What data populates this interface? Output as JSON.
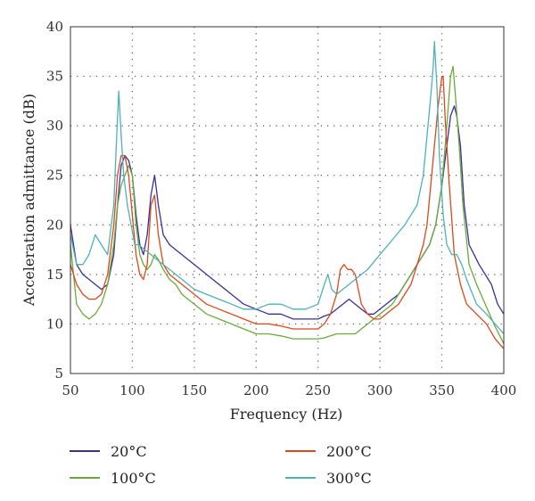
{
  "chart_data": {
    "type": "line",
    "xlabel": "Frequency (Hz)",
    "ylabel": "Acceleration admittance (dB)",
    "xlim": [
      50,
      400
    ],
    "ylim": [
      5,
      40
    ],
    "xticks": [
      "50",
      "100",
      "150",
      "200",
      "250",
      "300",
      "350",
      "400"
    ],
    "yticks": [
      "5",
      "10",
      "15",
      "20",
      "25",
      "30",
      "35",
      "40"
    ],
    "grid": "dotted",
    "legend_position": "bottom",
    "series": [
      {
        "name": "20°C",
        "color": "#3b2f9a",
        "x": [
          50,
          55,
          60,
          65,
          70,
          75,
          80,
          85,
          88,
          91,
          94,
          97,
          100,
          103,
          106,
          109,
          112,
          115,
          118,
          121,
          125,
          130,
          135,
          140,
          145,
          150,
          160,
          170,
          180,
          190,
          200,
          210,
          220,
          230,
          240,
          250,
          255,
          260,
          265,
          270,
          275,
          280,
          285,
          290,
          295,
          300,
          305,
          310,
          315,
          320,
          325,
          330,
          335,
          340,
          345,
          350,
          354,
          357,
          360,
          362,
          365,
          368,
          372,
          376,
          380,
          385,
          390,
          395,
          400
        ],
        "y": [
          20,
          16,
          15,
          14.5,
          14,
          13.5,
          14,
          17,
          22,
          26,
          27,
          26.5,
          25,
          21,
          18,
          17,
          19,
          23,
          25,
          22,
          19,
          18,
          17.5,
          17,
          16.5,
          16,
          15,
          14,
          13,
          12,
          11.5,
          11,
          11,
          10.5,
          10.5,
          10.5,
          10.8,
          11,
          11.5,
          12,
          12.5,
          12,
          11.5,
          11,
          11,
          11.5,
          12,
          12.5,
          13,
          14,
          15,
          16,
          17,
          18,
          20,
          24,
          28,
          31,
          32,
          31,
          28,
          22,
          18,
          17,
          16,
          15,
          14,
          12,
          11
        ]
      },
      {
        "name": "100°C",
        "color": "#6aaa3a",
        "x": [
          50,
          55,
          60,
          65,
          70,
          75,
          80,
          85,
          88,
          91,
          94,
          97,
          100,
          103,
          106,
          109,
          112,
          115,
          118,
          121,
          125,
          130,
          135,
          140,
          145,
          150,
          160,
          170,
          180,
          190,
          200,
          210,
          220,
          230,
          240,
          250,
          255,
          260,
          265,
          270,
          275,
          280,
          285,
          290,
          295,
          300,
          305,
          310,
          315,
          320,
          325,
          330,
          335,
          340,
          345,
          350,
          354,
          357,
          359,
          361,
          364,
          367,
          372,
          378,
          385,
          392,
          400
        ],
        "y": [
          18,
          12,
          11,
          10.5,
          11,
          12,
          14,
          18,
          22,
          24,
          25,
          26,
          25,
          20,
          17,
          16,
          15.5,
          16,
          17,
          16.5,
          15.5,
          14.5,
          14,
          13,
          12.5,
          12,
          11,
          10.5,
          10,
          9.5,
          9,
          9,
          8.8,
          8.5,
          8.5,
          8.5,
          8.6,
          8.8,
          9,
          9,
          9,
          9,
          9.5,
          10,
          10.5,
          11,
          11.5,
          12,
          13,
          14,
          15,
          16,
          17,
          18,
          20,
          24,
          30,
          35,
          36,
          33,
          28,
          22,
          16,
          14,
          12,
          10,
          8
        ]
      },
      {
        "name": "200°C",
        "color": "#d9491c",
        "x": [
          50,
          55,
          60,
          65,
          70,
          75,
          80,
          85,
          88,
          91,
          94,
          97,
          100,
          103,
          106,
          109,
          112,
          115,
          118,
          121,
          125,
          130,
          135,
          140,
          145,
          150,
          160,
          170,
          180,
          190,
          200,
          210,
          220,
          230,
          240,
          250,
          255,
          260,
          265,
          268,
          271,
          274,
          277,
          280,
          285,
          290,
          295,
          300,
          305,
          310,
          315,
          320,
          325,
          330,
          335,
          338,
          341,
          344,
          347,
          350,
          351,
          353,
          356,
          360,
          365,
          370,
          378,
          386,
          393,
          400
        ],
        "y": [
          16,
          14,
          13,
          12.5,
          12.5,
          13,
          15,
          20,
          25,
          27,
          27,
          25,
          21,
          17,
          15,
          14.5,
          16,
          22,
          23,
          19,
          16,
          15,
          14.5,
          14,
          13.5,
          13,
          12,
          11.5,
          11,
          10.5,
          10,
          10,
          9.8,
          9.5,
          9.5,
          9.5,
          10,
          11,
          13,
          15.5,
          16,
          15.5,
          15.5,
          15,
          12,
          11,
          10.5,
          10.5,
          11,
          11.5,
          12,
          13,
          14,
          16,
          18,
          20,
          24,
          28,
          32,
          35,
          35,
          30,
          24,
          17,
          14,
          12,
          11,
          10,
          8.5,
          7.5
        ]
      },
      {
        "name": "300°C",
        "color": "#4fb0b8",
        "x": [
          50,
          55,
          60,
          65,
          70,
          75,
          80,
          85,
          87,
          89,
          91,
          93,
          96,
          99,
          102,
          105,
          110,
          115,
          120,
          125,
          130,
          140,
          150,
          160,
          170,
          180,
          190,
          200,
          210,
          220,
          230,
          240,
          250,
          255,
          258,
          261,
          265,
          270,
          275,
          280,
          290,
          300,
          310,
          320,
          330,
          335,
          338,
          341,
          343,
          344,
          346,
          348,
          351,
          354,
          358,
          362,
          366,
          370,
          378,
          386,
          393,
          400
        ],
        "y": [
          19,
          16,
          16,
          17,
          19,
          18,
          17,
          22,
          28,
          33.5,
          29,
          25,
          22,
          20,
          18,
          18,
          17.5,
          17,
          16.5,
          16,
          15.5,
          14.5,
          13.5,
          13,
          12.5,
          12,
          11.5,
          11.5,
          12,
          12,
          11.5,
          11.5,
          12,
          14,
          15,
          13.5,
          13,
          13.5,
          14,
          14.5,
          15.5,
          17,
          18.5,
          20,
          22,
          25,
          29,
          33,
          36,
          38.5,
          34,
          27,
          21,
          18,
          17,
          17,
          16,
          14.5,
          12,
          11,
          10,
          9
        ]
      }
    ]
  }
}
